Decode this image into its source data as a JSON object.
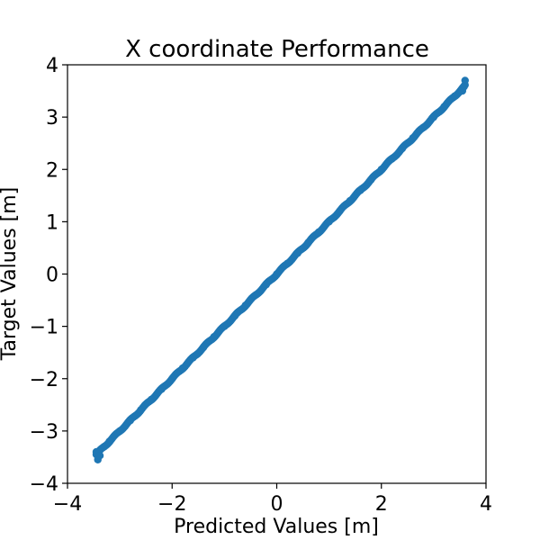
{
  "chart_data": {
    "type": "scatter",
    "title": "X coordinate Performance",
    "xlabel": "Predicted Values [m]",
    "ylabel": "Target Values [m]",
    "xlim": [
      -4,
      4
    ],
    "ylim": [
      -4,
      4
    ],
    "xticks": [
      -4,
      -2,
      0,
      2,
      4
    ],
    "yticks": [
      -4,
      -3,
      -2,
      -1,
      0,
      1,
      2,
      3,
      4
    ],
    "xtick_labels": [
      "−4",
      "−2",
      "0",
      "2",
      "4"
    ],
    "ytick_labels": [
      "−4",
      "−3",
      "−2",
      "−1",
      "0",
      "1",
      "2",
      "3",
      "4"
    ],
    "grid": false,
    "series": [
      {
        "color": "#1f77b4",
        "x_range": [
          -3.45,
          3.6
        ],
        "relation": "y = x",
        "points": [
          {
            "x": -3.45,
            "y": -3.4
          },
          {
            "x": -3.42,
            "y": -3.55
          },
          {
            "x": -3.38,
            "y": -3.47
          },
          {
            "x": -3.3,
            "y": -3.3
          },
          {
            "x": -3.2,
            "y": -3.2
          },
          {
            "x": -3.0,
            "y": -3.0
          },
          {
            "x": -2.8,
            "y": -2.8
          },
          {
            "x": -2.6,
            "y": -2.6
          },
          {
            "x": -2.4,
            "y": -2.4
          },
          {
            "x": -2.2,
            "y": -2.2
          },
          {
            "x": -2.0,
            "y": -2.0
          },
          {
            "x": -1.8,
            "y": -1.8
          },
          {
            "x": -1.6,
            "y": -1.6
          },
          {
            "x": -1.4,
            "y": -1.4
          },
          {
            "x": -1.2,
            "y": -1.2
          },
          {
            "x": -1.0,
            "y": -1.0
          },
          {
            "x": -0.8,
            "y": -0.8
          },
          {
            "x": -0.6,
            "y": -0.6
          },
          {
            "x": -0.4,
            "y": -0.4
          },
          {
            "x": -0.2,
            "y": -0.2
          },
          {
            "x": 0.0,
            "y": 0.0
          },
          {
            "x": 0.2,
            "y": 0.2
          },
          {
            "x": 0.4,
            "y": 0.4
          },
          {
            "x": 0.6,
            "y": 0.6
          },
          {
            "x": 0.8,
            "y": 0.8
          },
          {
            "x": 1.0,
            "y": 1.0
          },
          {
            "x": 1.2,
            "y": 1.2
          },
          {
            "x": 1.4,
            "y": 1.4
          },
          {
            "x": 1.6,
            "y": 1.6
          },
          {
            "x": 1.8,
            "y": 1.8
          },
          {
            "x": 2.0,
            "y": 2.0
          },
          {
            "x": 2.2,
            "y": 2.2
          },
          {
            "x": 2.4,
            "y": 2.4
          },
          {
            "x": 2.6,
            "y": 2.6
          },
          {
            "x": 2.8,
            "y": 2.8
          },
          {
            "x": 3.0,
            "y": 3.0
          },
          {
            "x": 3.2,
            "y": 3.2
          },
          {
            "x": 3.4,
            "y": 3.4
          },
          {
            "x": 3.55,
            "y": 3.5
          },
          {
            "x": 3.6,
            "y": 3.7
          },
          {
            "x": 3.58,
            "y": 3.58
          }
        ]
      }
    ]
  }
}
